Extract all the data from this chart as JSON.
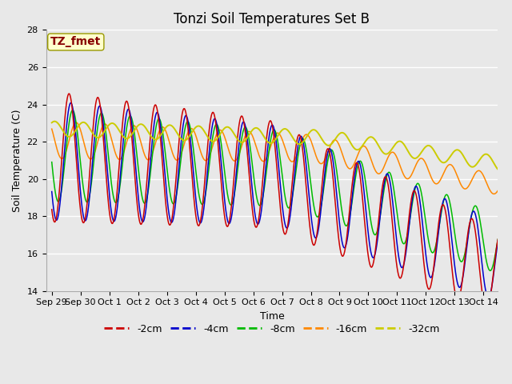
{
  "title": "Tonzi Soil Temperatures Set B",
  "xlabel": "Time",
  "ylabel": "Soil Temperature (C)",
  "ylim": [
    14,
    28
  ],
  "xlim_start": -0.2,
  "xlim_end": 15.5,
  "x_tick_labels": [
    "Sep 29",
    "Sep 30",
    "Oct 1",
    "Oct 2",
    "Oct 3",
    "Oct 4",
    "Oct 5",
    "Oct 6",
    "Oct 7",
    "Oct 8",
    "Oct 9",
    "Oct 10",
    "Oct 11",
    "Oct 12",
    "Oct 13",
    "Oct 14"
  ],
  "x_tick_positions": [
    0,
    1,
    2,
    3,
    4,
    5,
    6,
    7,
    8,
    9,
    10,
    11,
    12,
    13,
    14,
    15
  ],
  "ytick_positions": [
    14,
    16,
    18,
    20,
    22,
    24,
    26,
    28
  ],
  "series_colors": [
    "#cc0000",
    "#0000cc",
    "#00bb00",
    "#ff8800",
    "#cccc00"
  ],
  "series_labels": [
    "-2cm",
    "-4cm",
    "-8cm",
    "-16cm",
    "-32cm"
  ],
  "background_color": "#e8e8e8",
  "plot_bg_color": "#e8e8e8",
  "grid_color": "#ffffff",
  "annotation_text": "TZ_fmet",
  "annotation_color": "#880000",
  "annotation_bg": "#ffffcc",
  "title_fontsize": 12,
  "label_fontsize": 9,
  "tick_fontsize": 8,
  "legend_fontsize": 9
}
